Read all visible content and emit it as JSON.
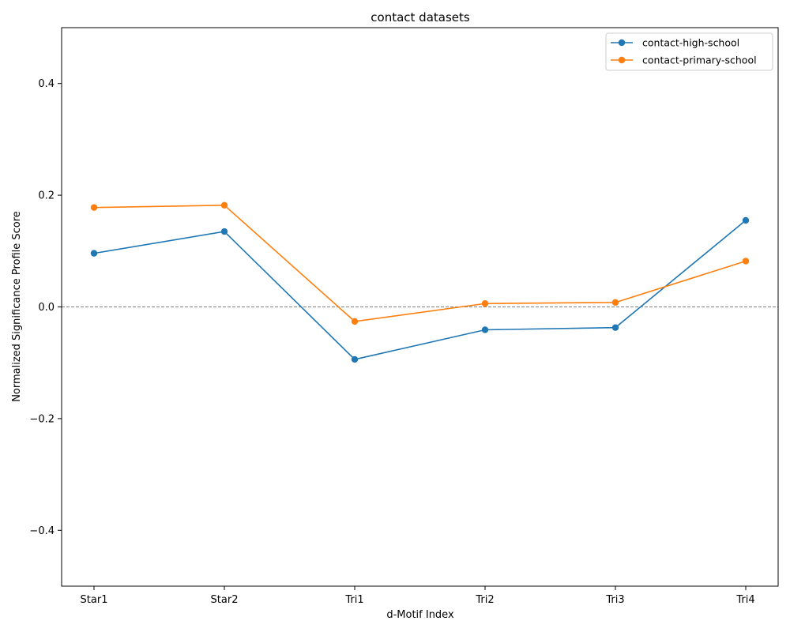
{
  "chart_data": {
    "type": "line",
    "title": "contact datasets",
    "xlabel": "d-Motif Index",
    "ylabel": "Normalized Significance Profile Score",
    "categories": [
      "Star1",
      "Star2",
      "Tri1",
      "Tri2",
      "Tri3",
      "Tri4"
    ],
    "ylim": [
      -0.5,
      0.5
    ],
    "yticks": [
      -0.4,
      -0.2,
      0.0,
      0.2,
      0.4
    ],
    "ytick_labels": [
      "−0.4",
      "−0.2",
      "0.0",
      "0.2",
      "0.4"
    ],
    "reference_line": 0.0,
    "grid": false,
    "legend_position": "top-right",
    "series": [
      {
        "name": "contact-high-school",
        "color": "#1f77b4",
        "values": [
          0.096,
          0.135,
          -0.094,
          -0.041,
          -0.037,
          0.155
        ]
      },
      {
        "name": "contact-primary-school",
        "color": "#ff7f0e",
        "values": [
          0.178,
          0.182,
          -0.026,
          0.006,
          0.008,
          0.082
        ]
      }
    ]
  }
}
